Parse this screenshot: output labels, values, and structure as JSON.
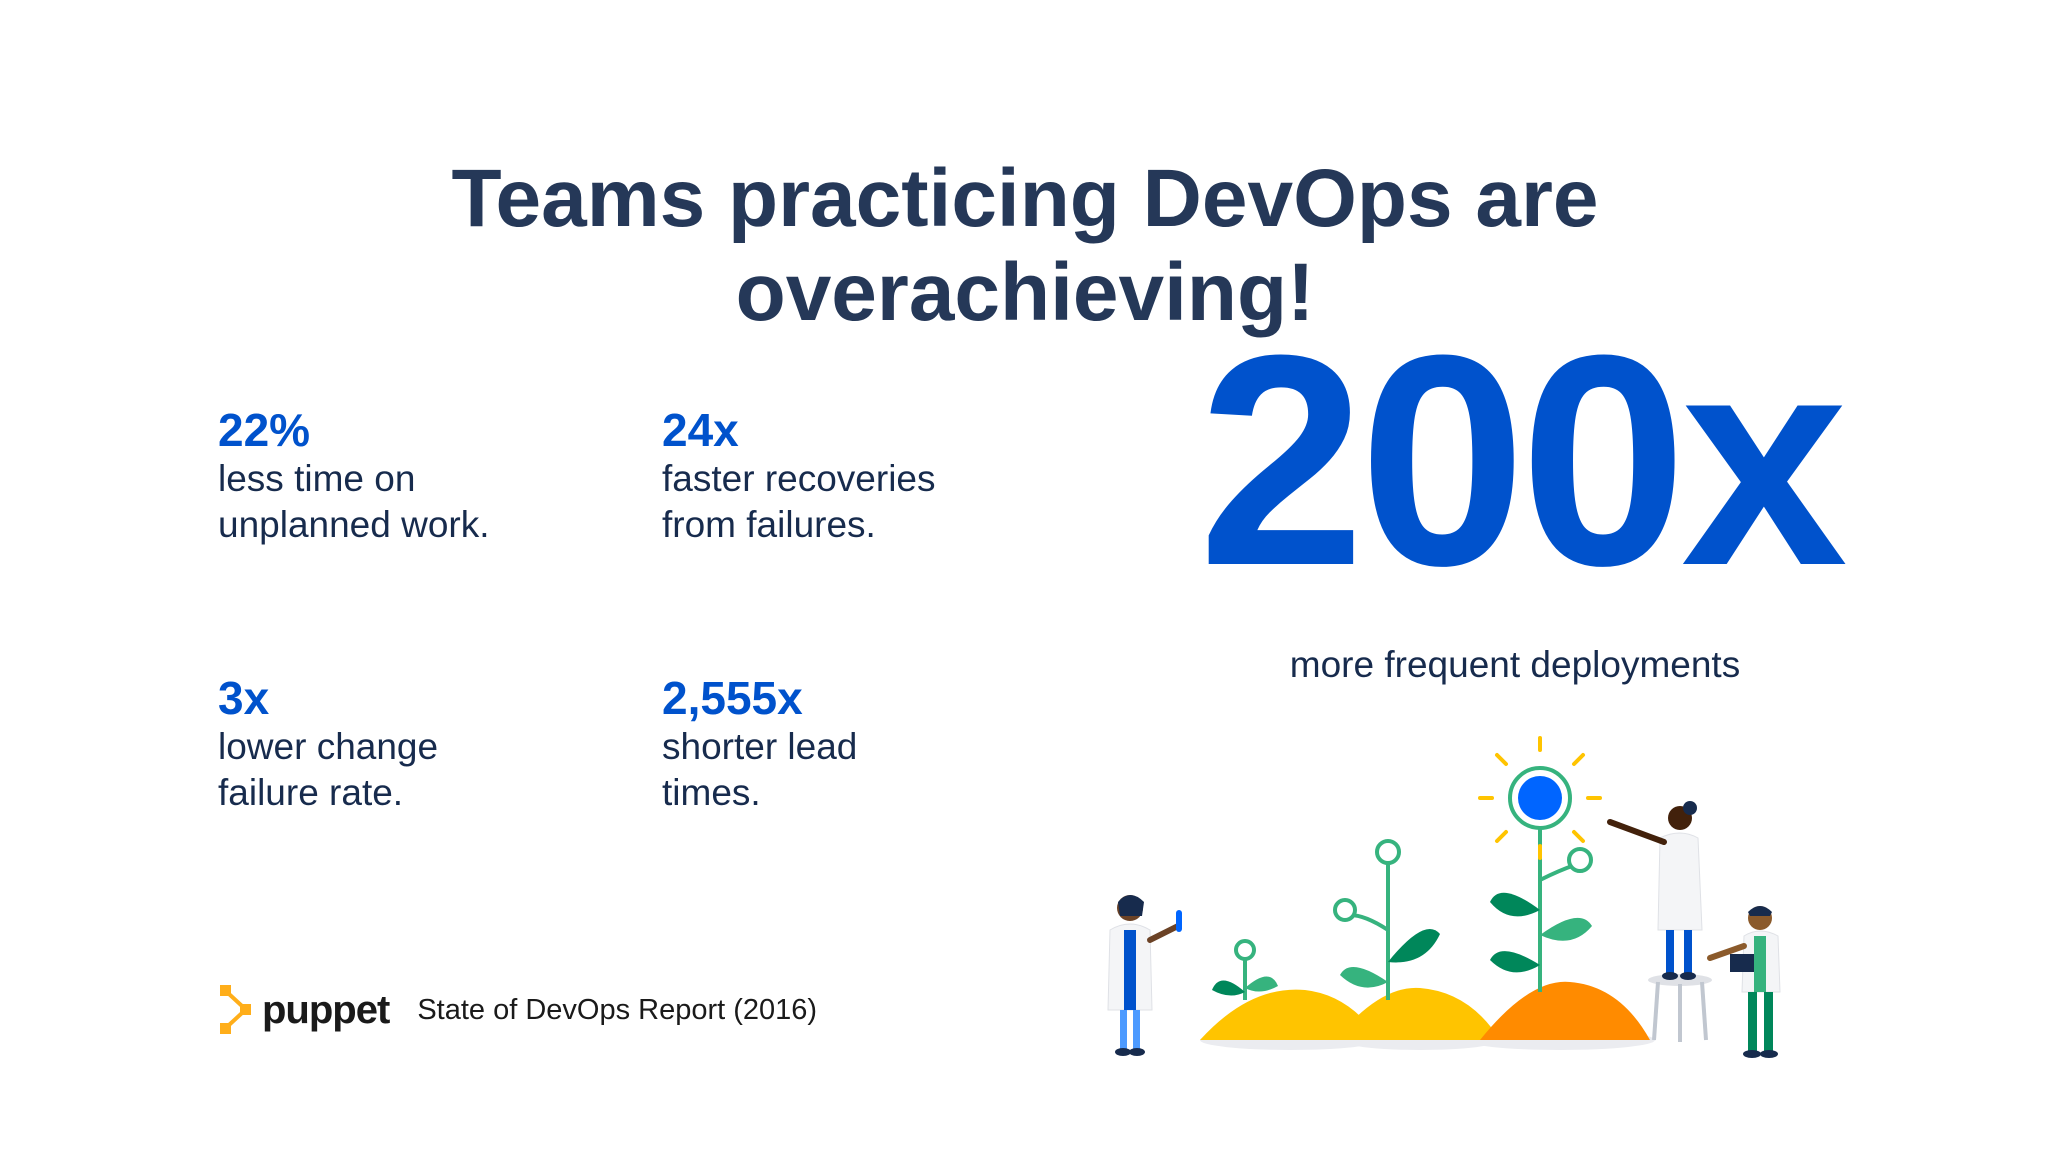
{
  "title": {
    "line1": "Teams practicing DevOps are",
    "line2": "overachieving!"
  },
  "stats": [
    {
      "value": "22%",
      "line1": "less time on",
      "line2": "unplanned work."
    },
    {
      "value": "24x",
      "line1": "faster recoveries",
      "line2": "from failures."
    },
    {
      "value": "3x",
      "line1": "lower change",
      "line2": "failure rate."
    },
    {
      "value": "2,555x",
      "line1": "shorter lead",
      "line2": "times."
    }
  ],
  "highlight": {
    "value": "200x",
    "caption": "more frequent deployments"
  },
  "footer": {
    "logo_text": "puppet",
    "source": "State of DevOps Report (2016)"
  },
  "colors": {
    "title": "#253858",
    "accent": "#0052cc",
    "body_text": "#172b4d",
    "puppet_orange": "#ffae1a"
  },
  "icons": {
    "logo": "puppet-logo-icon",
    "illustration": "scientists-growing-plants-illustration"
  }
}
